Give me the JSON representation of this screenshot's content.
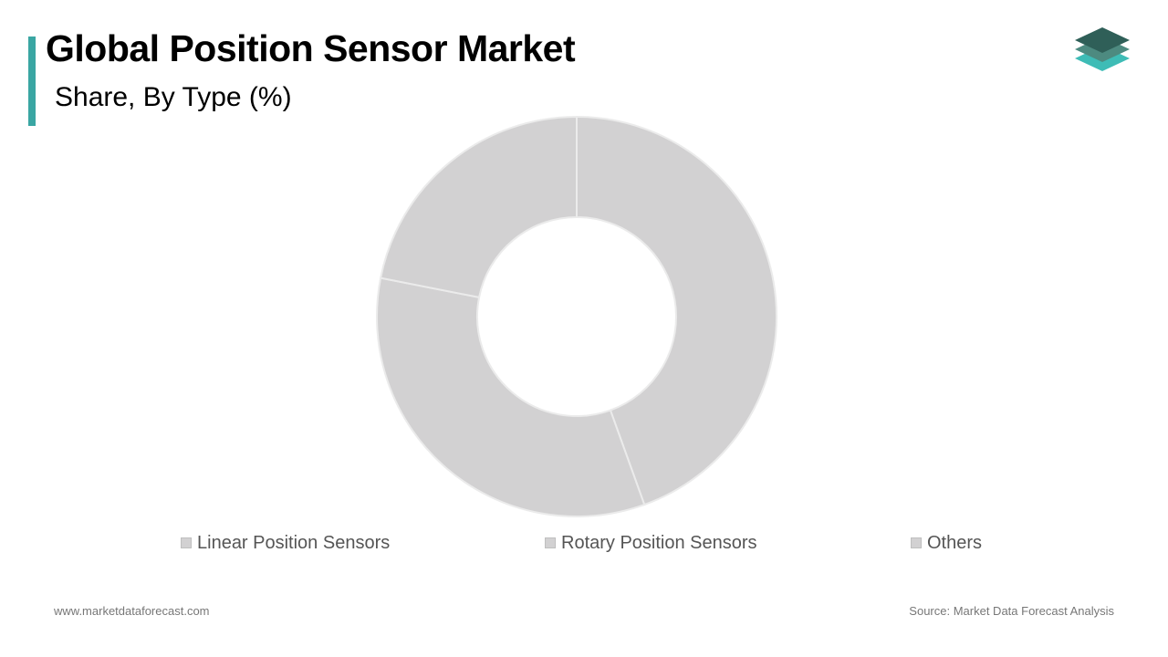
{
  "header": {
    "title": "Global Position Sensor Market",
    "subtitle": "Share, By Type (%)"
  },
  "logo": {
    "icon": "layered-diamonds-logo-icon",
    "colors": [
      "#2f5f58",
      "#4d8a80",
      "#3ebcb6"
    ]
  },
  "footer": {
    "website": "www.marketdataforecast.com",
    "source": "Source: Market Data Forecast Analysis"
  },
  "colors": {
    "accent": "#3aa6a3",
    "slice_fill": "#d2d1d2",
    "slice_stroke": "#ebebeb"
  },
  "chart_data": {
    "type": "pie",
    "donut": true,
    "categories": [
      "Linear Position Sensors",
      "Rotary Position Sensors",
      "Others"
    ],
    "values": [
      44.5,
      33.6,
      21.9
    ],
    "legend_position": "bottom",
    "title": "",
    "data_labels": []
  }
}
